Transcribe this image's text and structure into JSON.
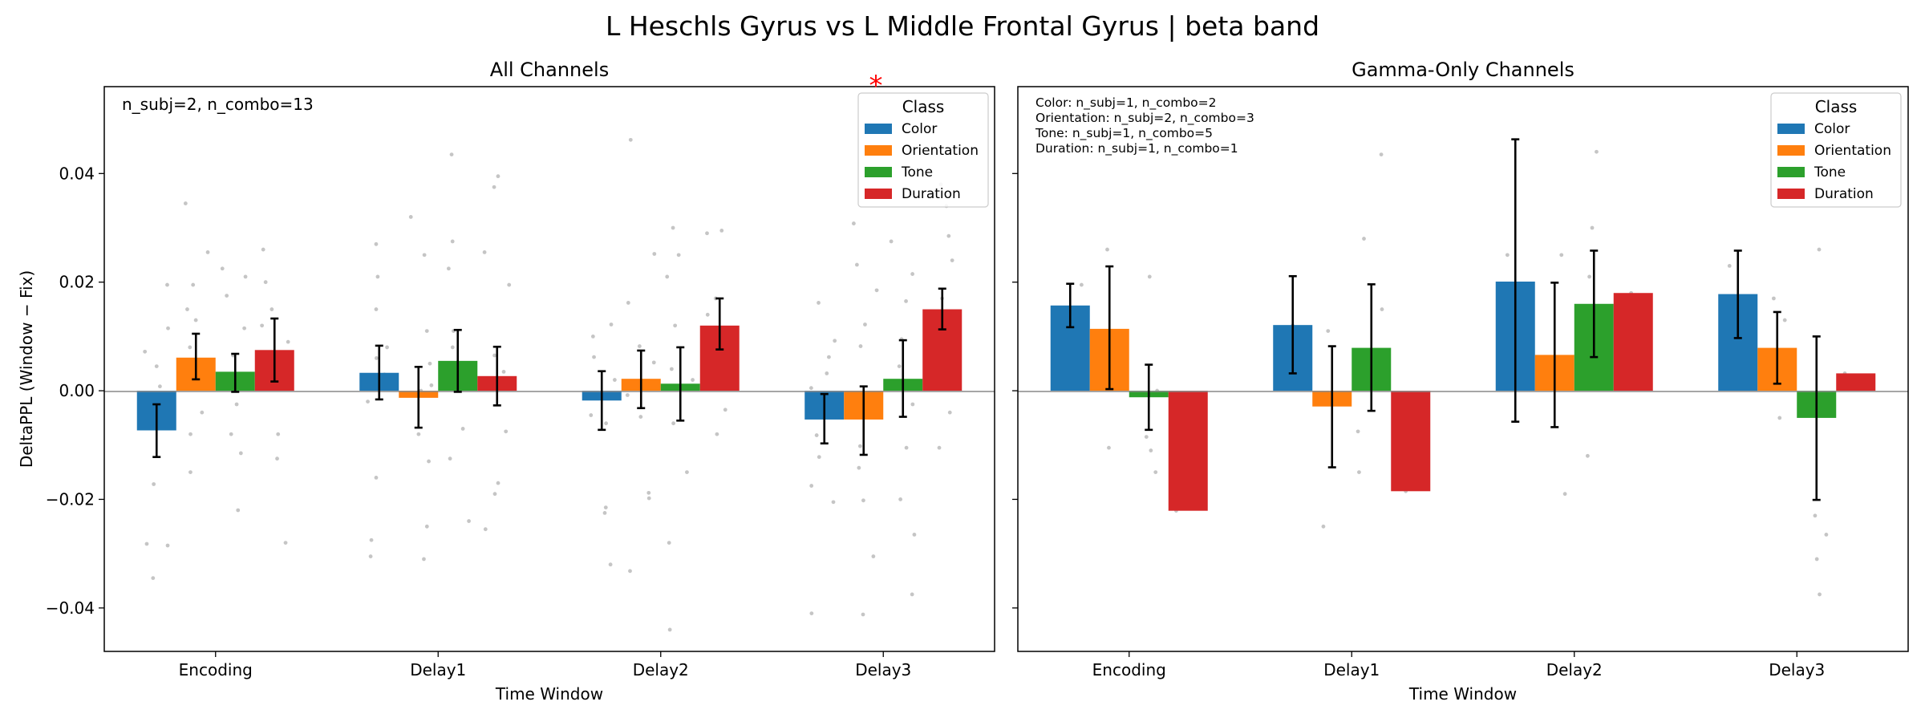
{
  "title": "L Heschls Gyrus vs L Middle Frontal Gyrus  |  beta band",
  "colors": {
    "Color": "#1f77b4",
    "Orientation": "#ff7f0e",
    "Tone": "#2ca02c",
    "Duration": "#d62728",
    "points": "#bbbbbb",
    "errorbar": "#000000"
  },
  "chart_data": [
    {
      "type": "bar",
      "title": "All Channels",
      "xlabel": "Time Window",
      "ylabel": "DeltaPPL (Window − Fix)",
      "ylim": [
        -0.048,
        0.056
      ],
      "yticks": [
        -0.04,
        -0.02,
        0.0,
        0.02,
        0.04
      ],
      "ytick_labels": [
        "−0.04",
        "−0.02",
        "0.00",
        "0.02",
        "0.04"
      ],
      "categories": [
        "Encoding",
        "Delay1",
        "Delay2",
        "Delay3"
      ],
      "legend": {
        "title": "Class",
        "position": "top-right"
      },
      "annotation": "n_subj=2, n_combo=13",
      "significance": [
        {
          "category": "Delay3",
          "series": "Duration",
          "label": "*"
        }
      ],
      "series": [
        {
          "name": "Color",
          "values": [
            -0.0073,
            0.0033,
            -0.0018,
            -0.0053
          ],
          "err_low": [
            -0.0122,
            -0.0016,
            -0.0072,
            -0.0097
          ],
          "err_high": [
            -0.0025,
            0.0083,
            0.0036,
            -0.0006
          ],
          "points": [
            [
              0.0195,
              0.0115,
              0.0072,
              -0.0172,
              -0.0285,
              -0.0282,
              -0.0345,
              0.0045,
              0.0008,
              -0.001
            ],
            [
              0.027,
              0.021,
              0.015,
              0.008,
              0.006,
              -0.016,
              -0.0275,
              -0.0305,
              0.003,
              -0.002
            ],
            [
              0.0122,
              0.0062,
              0.002,
              -0.0045,
              -0.006,
              -0.0215,
              -0.0225,
              -0.032,
              0.01,
              -0.0005
            ],
            [
              0.0162,
              0.0092,
              0.0062,
              0.0032,
              -0.0082,
              -0.0122,
              -0.0175,
              -0.0205,
              -0.041,
              0.0005
            ]
          ]
        },
        {
          "name": "Orientation",
          "values": [
            0.0061,
            -0.0013,
            0.0022,
            -0.0053
          ],
          "err_low": [
            0.0021,
            -0.0068,
            -0.0032,
            -0.0118
          ],
          "err_high": [
            0.0105,
            0.0044,
            0.0074,
            0.0008
          ],
          "points": [
            [
              0.0345,
              0.0255,
              0.0195,
              0.015,
              0.013,
              0.008,
              0.005,
              -0.004,
              -0.008,
              -0.015
            ],
            [
              0.032,
              0.025,
              0.011,
              0.005,
              -0.013,
              -0.025,
              -0.031,
              0.0,
              -0.008,
              0.001
            ],
            [
              0.0462,
              0.0252,
              0.0162,
              0.0052,
              -0.0048,
              -0.0188,
              -0.0198,
              -0.0332,
              0.0082,
              -0.0008
            ],
            [
              0.0308,
              0.0232,
              0.0185,
              0.0122,
              0.0082,
              -0.0142,
              -0.0202,
              -0.0305,
              -0.0412,
              -0.0102
            ]
          ]
        },
        {
          "name": "Tone",
          "values": [
            0.0035,
            0.0055,
            0.0013,
            0.0022
          ],
          "err_low": [
            -0.0002,
            -0.0002,
            -0.0055,
            -0.0048
          ],
          "err_high": [
            0.0068,
            0.0112,
            0.008,
            0.0093
          ],
          "points": [
            [
              0.0225,
              0.021,
              0.0175,
              0.0115,
              0.0065,
              0.002,
              -0.0025,
              -0.008,
              -0.0115,
              -0.022
            ],
            [
              0.0435,
              0.0275,
              0.0225,
              0.011,
              0.0045,
              -0.007,
              -0.0125,
              -0.024,
              0.002,
              0.008
            ],
            [
              0.03,
              0.025,
              0.021,
              0.012,
              0.004,
              -0.006,
              -0.015,
              -0.028,
              -0.044,
              0.002
            ],
            [
              0.0275,
              0.0215,
              0.0165,
              0.0095,
              -0.0025,
              -0.0105,
              -0.02,
              -0.0265,
              -0.0375,
              0.0045
            ]
          ]
        },
        {
          "name": "Duration",
          "values": [
            0.0075,
            0.0027,
            0.012,
            0.015
          ],
          "err_low": [
            0.0017,
            -0.0027,
            0.0076,
            0.0113
          ],
          "err_high": [
            0.0133,
            0.0081,
            0.017,
            0.0188
          ],
          "points": [
            [
              0.026,
              0.02,
              0.015,
              0.012,
              0.009,
              0.003,
              -0.008,
              -0.0125,
              -0.028,
              0.006
            ],
            [
              0.0395,
              0.0375,
              0.0255,
              0.0195,
              0.0065,
              -0.0075,
              -0.017,
              -0.019,
              -0.0255,
              0.0035
            ],
            [
              0.0295,
              0.029,
              0.017,
              0.014,
              0.011,
              0.006,
              0.002,
              -0.0035,
              -0.008,
              0.009
            ],
            [
              0.038,
              0.034,
              0.0285,
              0.024,
              0.017,
              0.012,
              0.007,
              -0.004,
              -0.0105,
              0.014
            ]
          ]
        }
      ]
    },
    {
      "type": "bar",
      "title": "Gamma-Only Channels",
      "xlabel": "Time Window",
      "ylim": [
        -0.048,
        0.056
      ],
      "categories": [
        "Encoding",
        "Delay1",
        "Delay2",
        "Delay3"
      ],
      "legend": {
        "title": "Class",
        "position": "top-right"
      },
      "annotation_lines": [
        "Color: n_subj=1, n_combo=2",
        "Orientation: n_subj=2, n_combo=3",
        "Tone: n_subj=1, n_combo=5",
        "Duration: n_subj=1, n_combo=1"
      ],
      "series": [
        {
          "name": "Color",
          "values": [
            0.0157,
            0.0121,
            0.0201,
            0.0178
          ],
          "err_low": [
            0.0117,
            0.0032,
            -0.0057,
            0.0097
          ],
          "err_high": [
            0.0197,
            0.0211,
            0.0463,
            0.0258
          ],
          "points": [
            [
              0.0195,
              0.012
            ],
            [
              0.012,
              0.011
            ],
            [
              0.025,
              0.015
            ],
            [
              0.023,
              0.012
            ]
          ]
        },
        {
          "name": "Orientation",
          "values": [
            0.0114,
            -0.0029,
            0.0066,
            0.0079
          ],
          "err_low": [
            0.0003,
            -0.0141,
            -0.0067,
            0.0013
          ],
          "err_high": [
            0.0229,
            0.0082,
            0.0199,
            0.0145
          ],
          "points": [
            [
              0.026,
              0.001,
              -0.0105
            ],
            [
              0.011,
              -0.025,
              -0.002
            ],
            [
              0.025,
              -0.019,
              0.005
            ],
            [
              0.017,
              0.013,
              -0.005
            ]
          ]
        },
        {
          "name": "Tone",
          "values": [
            -0.0012,
            0.0079,
            0.016,
            -0.005
          ],
          "err_low": [
            -0.0072,
            -0.0037,
            0.0062,
            -0.0201
          ],
          "err_high": [
            0.0048,
            0.0196,
            0.0258,
            0.01
          ],
          "points": [
            [
              0.021,
              0.0,
              -0.011,
              -0.015,
              -0.0085
            ],
            [
              0.0435,
              0.028,
              0.015,
              -0.0075,
              -0.015
            ],
            [
              0.044,
              0.03,
              0.021,
              -0.012,
              0.01
            ],
            [
              0.026,
              -0.023,
              -0.0265,
              -0.031,
              -0.0375
            ]
          ]
        },
        {
          "name": "Duration",
          "values": [
            -0.0221,
            -0.0185,
            0.018,
            0.0032
          ],
          "err_low": [
            -0.0221,
            -0.0185,
            0.018,
            0.0032
          ],
          "err_high": [
            -0.0221,
            -0.0185,
            0.018,
            0.0032
          ],
          "points": [
            [
              -0.0221
            ],
            [
              -0.0185
            ],
            [
              0.018
            ],
            [
              0.0032
            ]
          ]
        }
      ]
    }
  ]
}
